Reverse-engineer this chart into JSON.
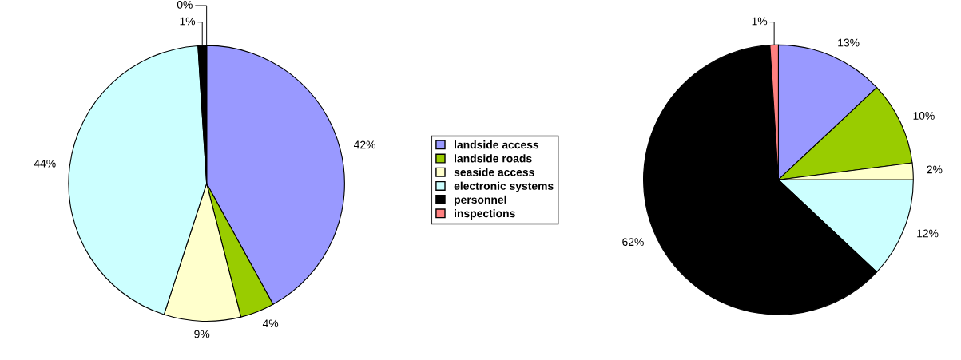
{
  "chart_data": [
    {
      "type": "pie",
      "categories": [
        "landside access",
        "landside roads",
        "seaside access",
        "electronic systems",
        "personnel",
        "inspections"
      ],
      "values": [
        42,
        4,
        9,
        44,
        1,
        0
      ],
      "colors": [
        "#9999ff",
        "#99cc00",
        "#ffffcc",
        "#ccffff",
        "#000000",
        "#ff8080"
      ],
      "value_labels": [
        "42%",
        "4%",
        "9%",
        "44%",
        "1%",
        "0%"
      ],
      "legend": "right"
    },
    {
      "type": "pie",
      "categories": [
        null,
        null,
        null,
        null,
        null,
        null
      ],
      "values": [
        13,
        10,
        2,
        12,
        62,
        1
      ],
      "colors": [
        "#9999ff",
        "#99cc00",
        "#ffffcc",
        "#ccffff",
        "#000000",
        "#ff8080"
      ],
      "value_labels": [
        "13%",
        "10%",
        "2%",
        "12%",
        "62%",
        "1%"
      ]
    }
  ]
}
